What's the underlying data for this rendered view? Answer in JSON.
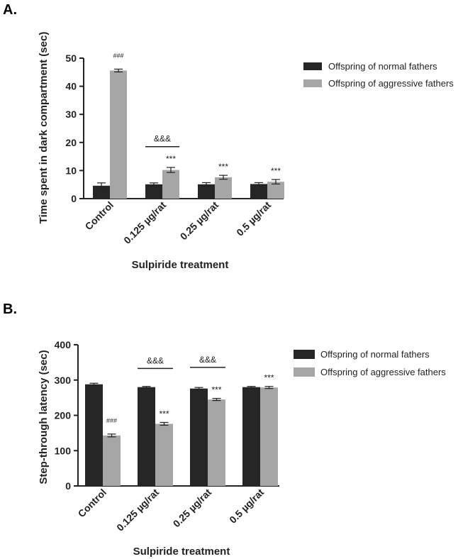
{
  "colors": {
    "normal": "#262626",
    "aggressive": "#a6a6a6",
    "axis": "#222222"
  },
  "chart_data": [
    {
      "type": "bar",
      "panel": "A.",
      "xlabel": "Sulpiride treatment",
      "ylabel": "Time spent in dark compartment (sec)",
      "ylim": [
        0,
        50
      ],
      "yticks": [
        0,
        10,
        20,
        30,
        40,
        50
      ],
      "categories": [
        "Control",
        "0.125 µg/rat",
        "0.25 µg/rat",
        "0.5 µg/rat"
      ],
      "series": [
        {
          "name": "Offspring of normal fathers",
          "values": [
            4.6,
            5.1,
            5.1,
            5.2
          ],
          "errors": [
            1.0,
            0.5,
            0.6,
            0.5
          ]
        },
        {
          "name": "Offspring of aggressive fathers",
          "values": [
            45.6,
            10.2,
            7.6,
            6.0
          ],
          "errors": [
            0.5,
            0.9,
            0.7,
            0.8
          ]
        }
      ],
      "annotations": [
        {
          "category": 0,
          "series": 1,
          "text": "###",
          "small": true
        },
        {
          "category": 1,
          "series": 1,
          "text": "***"
        },
        {
          "category": 2,
          "series": 1,
          "text": "***"
        },
        {
          "category": 3,
          "series": 1,
          "text": "***"
        }
      ],
      "brackets": [
        {
          "category": 1,
          "y": 18.5,
          "text": "&&&"
        }
      ],
      "legend_position": "right"
    },
    {
      "type": "bar",
      "panel": "B.",
      "xlabel": "Sulpiride treatment",
      "ylabel": "Step-through latency (sec)",
      "ylim": [
        0,
        400
      ],
      "yticks": [
        0,
        100,
        200,
        300,
        400
      ],
      "categories": [
        "Control",
        "0.125 µg/rat",
        "0.25 µg/rat",
        "0.5 µg/rat"
      ],
      "series": [
        {
          "name": "Offspring of normal fathers",
          "values": [
            288,
            280,
            276,
            280
          ],
          "errors": [
            3,
            2,
            3,
            2
          ]
        },
        {
          "name": "Offspring of aggressive fathers",
          "values": [
            143,
            176,
            245,
            279
          ],
          "errors": [
            4,
            4,
            3,
            3
          ]
        }
      ],
      "annotations": [
        {
          "category": 0,
          "series": 1,
          "text": "###",
          "small": true
        },
        {
          "category": 1,
          "series": 1,
          "text": "***"
        },
        {
          "category": 2,
          "series": 1,
          "text": "***"
        },
        {
          "category": 3,
          "series": 1,
          "text": "***"
        }
      ],
      "brackets": [
        {
          "category": 1,
          "y": 333,
          "text": "&&&"
        },
        {
          "category": 2,
          "y": 336,
          "text": "&&&"
        }
      ],
      "legend_position": "right"
    }
  ]
}
